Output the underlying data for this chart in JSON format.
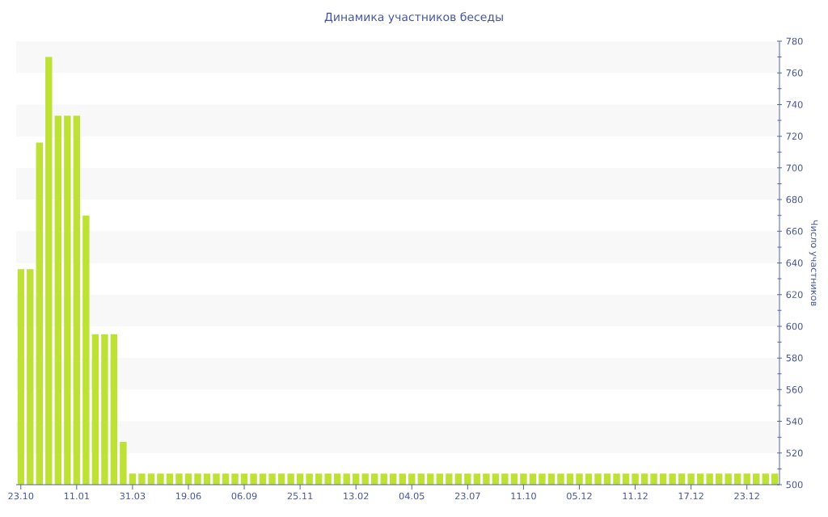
{
  "chart_data": {
    "type": "bar",
    "title": "Динамика участников беседы",
    "ylabel": "Число участников",
    "categories": [
      "23.10",
      null,
      null,
      null,
      null,
      null,
      "11.01",
      null,
      null,
      null,
      null,
      null,
      "31.03",
      null,
      null,
      null,
      null,
      null,
      "19.06",
      null,
      null,
      null,
      null,
      null,
      "06.09",
      null,
      null,
      null,
      null,
      null,
      "25.11",
      null,
      null,
      null,
      null,
      null,
      "13.02",
      null,
      null,
      null,
      null,
      null,
      "04.05",
      null,
      null,
      null,
      null,
      null,
      "23.07",
      null,
      null,
      null,
      null,
      null,
      "11.10",
      null,
      null,
      null,
      null,
      null,
      "05.12",
      null,
      null,
      null,
      null,
      null,
      "11.12",
      null,
      null,
      null,
      null,
      null,
      "17.12",
      null,
      null,
      null,
      null,
      null,
      "23.12",
      null,
      null,
      null
    ],
    "values": [
      636,
      636,
      716,
      770,
      733,
      733,
      733,
      670,
      595,
      595,
      595,
      527,
      507,
      507,
      507,
      507,
      507,
      507,
      507,
      507,
      507,
      507,
      507,
      507,
      507,
      507,
      507,
      507,
      507,
      507,
      507,
      507,
      507,
      507,
      507,
      507,
      507,
      507,
      507,
      507,
      507,
      507,
      507,
      507,
      507,
      507,
      507,
      507,
      507,
      507,
      507,
      507,
      507,
      507,
      507,
      507,
      507,
      507,
      507,
      507,
      507,
      507,
      507,
      507,
      507,
      507,
      507,
      507,
      507,
      507,
      507,
      507,
      507,
      507,
      507,
      507,
      507,
      507,
      507,
      507,
      507,
      507
    ],
    "color": "#bde135",
    "ylim": [
      500,
      780
    ],
    "yticks": [
      500,
      {
        "value": 510,
        "label": null
      },
      520,
      {
        "value": 530,
        "label": null
      },
      540,
      {
        "value": 550,
        "label": null
      },
      560,
      {
        "value": 570,
        "label": null
      },
      580,
      {
        "value": 590,
        "label": null
      },
      600,
      {
        "value": 610,
        "label": null
      },
      620,
      {
        "value": 630,
        "label": null
      },
      640,
      {
        "value": 650,
        "label": null
      },
      660,
      {
        "value": 670,
        "label": null
      },
      680,
      {
        "value": 690,
        "label": null
      },
      700,
      {
        "value": 710,
        "label": null
      },
      720,
      {
        "value": 730,
        "label": null
      },
      740,
      {
        "value": 750,
        "label": null
      },
      760,
      {
        "value": 770,
        "label": null
      },
      780
    ],
    "bands": [
      {
        "axis": "y",
        "from": 520,
        "to": 540,
        "color": "#f8f8f8"
      },
      {
        "axis": "y",
        "from": 560,
        "to": 580,
        "color": "#f8f8f8"
      },
      {
        "axis": "y",
        "from": 600,
        "to": 620,
        "color": "#f8f8f8"
      },
      {
        "axis": "y",
        "from": 640,
        "to": 660,
        "color": "#f8f8f8"
      },
      {
        "axis": "y",
        "from": 680,
        "to": 700,
        "color": "#f8f8f8"
      },
      {
        "axis": "y",
        "from": 720,
        "to": 740,
        "color": "#f8f8f8"
      },
      {
        "axis": "y",
        "from": 760,
        "to": 780,
        "color": "#f8f8f8"
      }
    ]
  }
}
